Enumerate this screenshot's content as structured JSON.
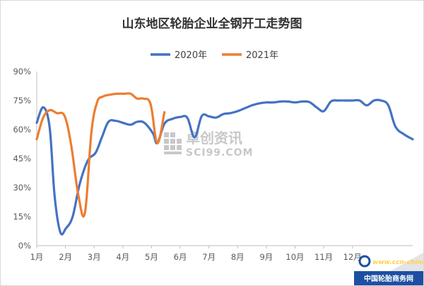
{
  "chart_data": {
    "type": "line",
    "title": "山东地区轮胎企业全钢开工走势图",
    "xlabel": "",
    "ylabel": "",
    "ylim": [
      0,
      90
    ],
    "ytick_labels": [
      "0%",
      "15%",
      "30%",
      "45%",
      "60%",
      "75%",
      "90%"
    ],
    "xtick_labels": [
      "1月",
      "2月",
      "3月",
      "4月",
      "5月",
      "6月",
      "7月",
      "8月",
      "9月",
      "10月",
      "11月",
      "12月"
    ],
    "x_unit": "month index (1 = Jan)",
    "grid": false,
    "legend_position": "top",
    "series": [
      {
        "name": "2020年",
        "color": "#4472c4",
        "points": [
          [
            1.0,
            63.5
          ],
          [
            1.23,
            71.5
          ],
          [
            1.45,
            61.0
          ],
          [
            1.62,
            26.0
          ],
          [
            1.82,
            7.0
          ],
          [
            2.02,
            9.0
          ],
          [
            2.25,
            15.0
          ],
          [
            2.5,
            32.0
          ],
          [
            2.78,
            44.0
          ],
          [
            3.05,
            48.0
          ],
          [
            3.27,
            56.0
          ],
          [
            3.5,
            64.0
          ],
          [
            3.75,
            64.5
          ],
          [
            4.0,
            63.5
          ],
          [
            4.27,
            62.5
          ],
          [
            4.5,
            64.0
          ],
          [
            4.75,
            63.5
          ],
          [
            5.05,
            58.0
          ],
          [
            5.2,
            53.0
          ],
          [
            5.45,
            63.0
          ],
          [
            5.72,
            65.5
          ],
          [
            6.0,
            66.5
          ],
          [
            6.25,
            66.0
          ],
          [
            6.5,
            56.0
          ],
          [
            6.75,
            67.0
          ],
          [
            7.0,
            66.8
          ],
          [
            7.25,
            66.2
          ],
          [
            7.5,
            68.0
          ],
          [
            7.75,
            68.5
          ],
          [
            8.0,
            69.5
          ],
          [
            8.25,
            71.0
          ],
          [
            8.5,
            72.5
          ],
          [
            8.75,
            73.5
          ],
          [
            9.0,
            74.0
          ],
          [
            9.25,
            74.0
          ],
          [
            9.5,
            74.5
          ],
          [
            9.75,
            74.5
          ],
          [
            10.0,
            74.0
          ],
          [
            10.25,
            74.5
          ],
          [
            10.5,
            74.2
          ],
          [
            10.75,
            71.5
          ],
          [
            11.0,
            69.5
          ],
          [
            11.25,
            74.5
          ],
          [
            11.5,
            75.0
          ],
          [
            11.75,
            75.0
          ],
          [
            12.0,
            75.0
          ],
          [
            12.25,
            75.0
          ],
          [
            12.5,
            72.5
          ],
          [
            12.75,
            75.0
          ],
          [
            13.0,
            75.0
          ],
          [
            13.25,
            72.5
          ],
          [
            13.5,
            61.5
          ],
          [
            13.8,
            57.5
          ],
          [
            14.1,
            55.0
          ]
        ]
      },
      {
        "name": "2021年",
        "color": "#ed7d31",
        "points": [
          [
            1.0,
            55.0
          ],
          [
            1.22,
            66.0
          ],
          [
            1.45,
            70.0
          ],
          [
            1.7,
            68.5
          ],
          [
            1.97,
            67.0
          ],
          [
            2.2,
            52.0
          ],
          [
            2.45,
            26.0
          ],
          [
            2.68,
            17.0
          ],
          [
            2.9,
            58.0
          ],
          [
            3.1,
            74.0
          ],
          [
            3.3,
            77.0
          ],
          [
            3.55,
            78.0
          ],
          [
            3.8,
            78.5
          ],
          [
            4.05,
            78.5
          ],
          [
            4.27,
            78.5
          ],
          [
            4.5,
            76.0
          ],
          [
            4.72,
            76.0
          ],
          [
            4.97,
            73.0
          ],
          [
            5.2,
            53.0
          ],
          [
            5.45,
            69.0
          ]
        ]
      }
    ]
  },
  "watermark": {
    "brand_text": "卓创资讯",
    "brand_sub": "SCI99.COM"
  },
  "corner_badge": {
    "url_text": "www.ccn-china.net",
    "name_text": "中国轮胎商务网"
  }
}
